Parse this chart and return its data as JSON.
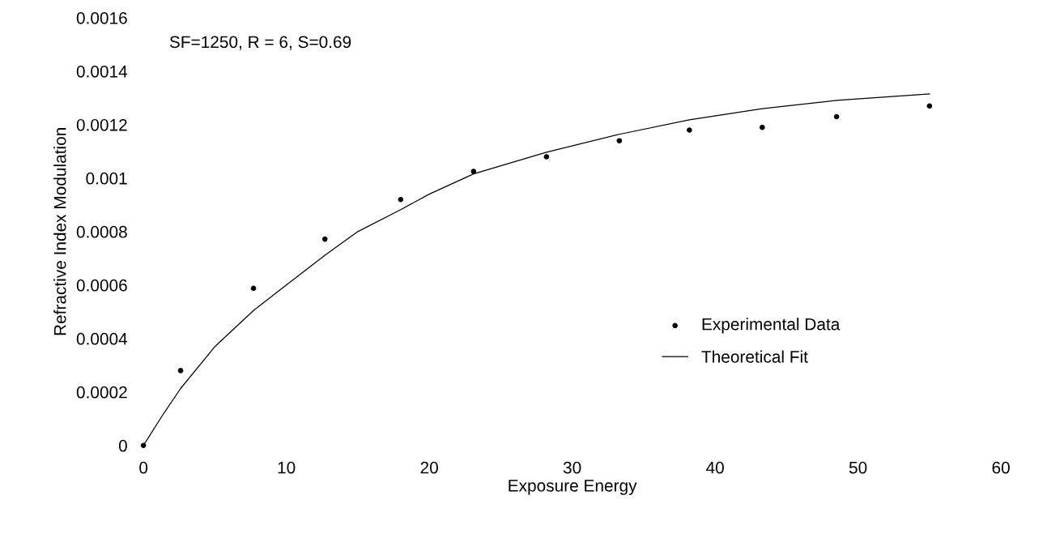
{
  "chart_data": {
    "type": "scatter",
    "xlabel": "Exposure Energy",
    "ylabel": "Refractive Index Modulation",
    "annotations": [
      "SF=1250, R = 6, S=0.69"
    ],
    "series": [
      {
        "name": "Experimental Data",
        "color": "#000000",
        "marker": "circle",
        "x": [
          0,
          2.6,
          7.7,
          12.7,
          18.0,
          23.1,
          28.2,
          33.3,
          38.2,
          43.3,
          48.5,
          55.0
        ],
        "values": [
          0,
          0.00028,
          0.000588,
          0.000772,
          0.00092,
          0.001025,
          0.00108,
          0.00114,
          0.00118,
          0.00119,
          0.00123,
          0.00127
        ]
      },
      {
        "name": "Theoretical Fit",
        "type": "line",
        "color": "#000000",
        "marker": "none",
        "line_style": "solid",
        "x": [
          0,
          1.3,
          2.6,
          5,
          7.7,
          10,
          12.7,
          15,
          18.0,
          20,
          23.1,
          28.2,
          33.3,
          38.2,
          43.3,
          48.5,
          55.0
        ],
        "values": [
          0,
          0.00011,
          0.000213,
          0.00037,
          0.000505,
          0.0006,
          0.000712,
          0.0008,
          0.000882,
          0.00094,
          0.001016,
          0.001097,
          0.001164,
          0.001218,
          0.00126,
          0.001291,
          0.001315
        ]
      }
    ],
    "xlim": [
      0,
      60
    ],
    "xticks": [
      0,
      10,
      20,
      30,
      40,
      50,
      60
    ],
    "ylim": [
      0,
      0.0016
    ],
    "yticks": [
      0,
      {
        "value": 0.0002,
        "label": "0.0002"
      },
      {
        "value": 0.0004,
        "label": "0.0004"
      },
      {
        "value": 0.0006,
        "label": "0.0006"
      },
      {
        "value": 0.0008,
        "label": "0.0008"
      },
      {
        "value": 0.001,
        "label": "0.001"
      },
      {
        "value": 0.0012,
        "label": "0.0012"
      },
      {
        "value": 0.0014,
        "label": "0.0014"
      },
      {
        "value": 0.0016,
        "label": "0.0016"
      }
    ],
    "grid": false,
    "legend": "bottom right"
  }
}
